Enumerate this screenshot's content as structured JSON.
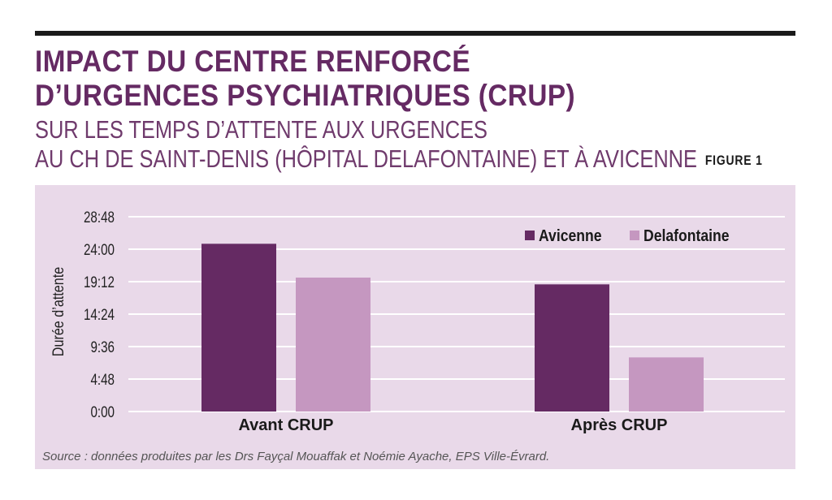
{
  "header": {
    "title_line1": "IMPACT DU CENTRE RENFORCÉ",
    "title_line2": "D’URGENCES PSYCHIATRIQUES (CRUP)",
    "subtitle_line1": "SUR LES TEMPS D’ATTENTE AUX URGENCES",
    "subtitle_line2": "AU CH DE SAINT-DENIS (HÔPITAL DELAFONTAINE) ET À AVICENNE",
    "figure_label": "FIGURE 1"
  },
  "colors": {
    "title": "#652a63",
    "panel_bg": "#e9d9e9",
    "avicenne": "#652a63",
    "delafontaine": "#c597c0",
    "grid": "#ffffff"
  },
  "chart_data": {
    "type": "bar",
    "categories": [
      "Avant CRUP",
      "Après CRUP"
    ],
    "series": [
      {
        "name": "Avicenne",
        "values": [
          1488,
          1128
        ]
      },
      {
        "name": "Delafontaine",
        "values": [
          1188,
          480
        ]
      }
    ],
    "value_unit": "minutes",
    "ylabel": "Durée d’attente",
    "ylim": [
      0,
      1728
    ],
    "yticks": [
      0,
      288,
      576,
      864,
      1152,
      1440,
      1728
    ],
    "ytick_labels": [
      "0:00",
      "4:48",
      "9:36",
      "14:24",
      "19:12",
      "24:00",
      "28:48"
    ],
    "grid": true,
    "legend_position": "top-right"
  },
  "footer": {
    "source": "Source : données produites par les Drs Fayçal Mouaffak et Noémie Ayache, EPS Ville-Évrard."
  }
}
